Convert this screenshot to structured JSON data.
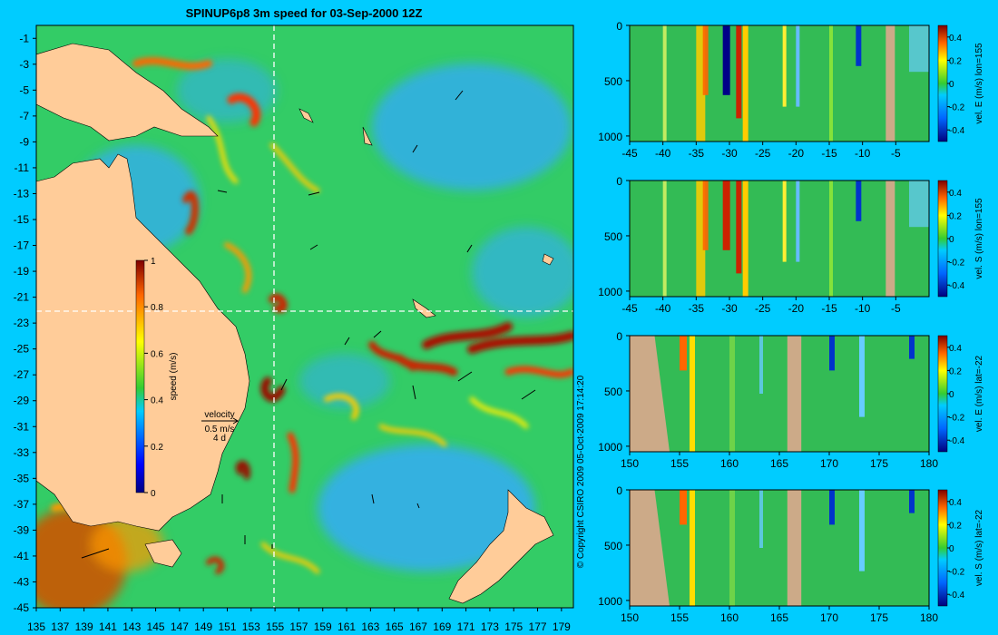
{
  "title": "SPINUP6p8 3m speed for 03-Sep-2000 12Z",
  "copyright": "© Copyright CSIRO 2009   05-Oct-2009 17:14:20",
  "map": {
    "xticks": [
      "135",
      "137",
      "139",
      "141",
      "143",
      "145",
      "147",
      "149",
      "151",
      "153",
      "155",
      "157",
      "159",
      "161",
      "163",
      "165",
      "167",
      "169",
      "171",
      "173",
      "175",
      "177",
      "179"
    ],
    "yticks": [
      "-1",
      "-3",
      "-5",
      "-7",
      "-9",
      "-11",
      "-13",
      "-15",
      "-17",
      "-19",
      "-21",
      "-23",
      "-25",
      "-27",
      "-29",
      "-31",
      "-33",
      "-35",
      "-37",
      "-39",
      "-41",
      "-43",
      "-45"
    ],
    "cbar_label": "speed (m/s)",
    "cbar_ticks": [
      "1",
      "0.8",
      "0.6",
      "0.4",
      "0.2",
      "0"
    ],
    "velocity_key": {
      "label": "velocity",
      "speed": "0.5 m/s",
      "days": "4 d"
    }
  },
  "panels": [
    {
      "label": "vel. E (m/s) lon=155",
      "xticks": [
        "-45",
        "-40",
        "-35",
        "-30",
        "-25",
        "-20",
        "-15",
        "-10",
        "-5"
      ],
      "yticks": [
        "0",
        "500",
        "1000"
      ],
      "cbar_ticks": [
        "0.4",
        "0.2",
        "0",
        "-0.2",
        "-0.4"
      ]
    },
    {
      "label": "vel. S (m/s) lon=155",
      "xticks": [
        "-45",
        "-40",
        "-35",
        "-30",
        "-25",
        "-20",
        "-15",
        "-10",
        "-5"
      ],
      "yticks": [
        "0",
        "500",
        "1000"
      ],
      "cbar_ticks": [
        "0.4",
        "0.2",
        "0",
        "-0.2",
        "-0.4"
      ]
    },
    {
      "label": "vel. E (m/s) lat=-22",
      "xticks": [
        "150",
        "155",
        "160",
        "165",
        "170",
        "175",
        "180"
      ],
      "yticks": [
        "0",
        "500",
        "1000"
      ],
      "cbar_ticks": [
        "0.4",
        "0.2",
        "0",
        "-0.2",
        "-0.4"
      ]
    },
    {
      "label": "vel. S (m/s) lat=-22",
      "xticks": [
        "150",
        "155",
        "160",
        "165",
        "170",
        "175",
        "180"
      ],
      "yticks": [
        "0",
        "500",
        "1000"
      ],
      "cbar_ticks": [
        "0.4",
        "0.2",
        "0",
        "-0.2",
        "-0.4"
      ]
    }
  ],
  "chart_data": [
    {
      "type": "heatmap",
      "title": "SPINUP6p8 3m speed for 03-Sep-2000 12Z",
      "xlabel": "",
      "ylabel": "",
      "xlim": [
        135,
        180
      ],
      "ylim": [
        -45,
        0
      ],
      "colorbar": {
        "label": "speed (m/s)",
        "range": [
          0,
          1
        ]
      },
      "section_lines": {
        "lon": 155,
        "lat": -22
      },
      "colors": {
        "background": "#00ccff",
        "land": "#ffcc99",
        "section_land": "#ccaa88"
      }
    },
    {
      "type": "heatmap",
      "colorbar": {
        "label": "vel. E (m/s) lon=155",
        "range": [
          -0.4,
          0.4
        ]
      },
      "xlim": [
        -45,
        0
      ],
      "ylim": [
        1050,
        0
      ]
    },
    {
      "type": "heatmap",
      "colorbar": {
        "label": "vel. S (m/s) lon=155",
        "range": [
          -0.4,
          0.4
        ]
      },
      "xlim": [
        -45,
        0
      ],
      "ylim": [
        1050,
        0
      ]
    },
    {
      "type": "heatmap",
      "colorbar": {
        "label": "vel. E (m/s) lat=-22",
        "range": [
          -0.4,
          0.4
        ]
      },
      "xlim": [
        150,
        180
      ],
      "ylim": [
        1050,
        0
      ]
    },
    {
      "type": "heatmap",
      "colorbar": {
        "label": "vel. S (m/s) lat=-22",
        "range": [
          -0.4,
          0.4
        ]
      },
      "xlim": [
        150,
        180
      ],
      "ylim": [
        1050,
        0
      ]
    }
  ]
}
